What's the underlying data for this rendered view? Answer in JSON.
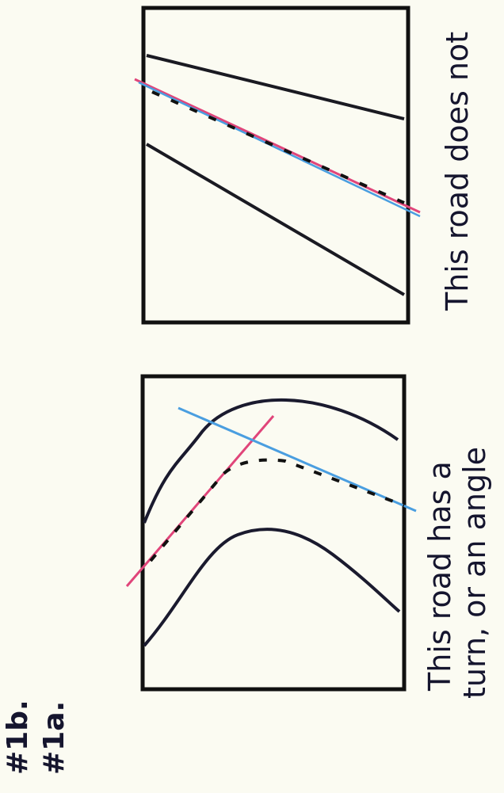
{
  "labels": [
    "#1b.",
    "#1a."
  ],
  "panels": [
    {
      "caption": [
        "This road does not"
      ]
    },
    {
      "caption": [
        "This road has a",
        "turn, or an angle"
      ]
    }
  ]
}
